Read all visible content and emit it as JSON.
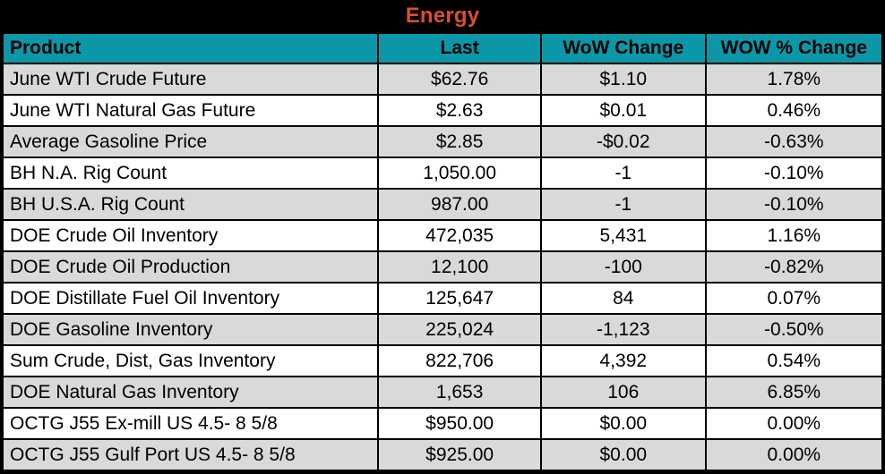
{
  "title": "Energy",
  "colors": {
    "title_text": "#D9502E",
    "title_bg": "#000000",
    "header_bg": "#0B97A7",
    "header_text": "#000000",
    "alt_row_bg": "#D9D9D9",
    "row_bg": "#FFFFFF",
    "grid": "#000000"
  },
  "table": {
    "columns": [
      {
        "key": "product",
        "label": "Product",
        "align": "left"
      },
      {
        "key": "last",
        "label": "Last",
        "align": "center"
      },
      {
        "key": "wow_change",
        "label": "WoW Change",
        "align": "center"
      },
      {
        "key": "wow_pct_change",
        "label": "WOW % Change",
        "align": "center"
      }
    ],
    "rows": [
      {
        "product": "June WTI Crude Future",
        "last": "$62.76",
        "wow_change": "$1.10",
        "wow_pct_change": "1.78%"
      },
      {
        "product": "June WTI Natural Gas Future",
        "last": "$2.63",
        "wow_change": "$0.01",
        "wow_pct_change": "0.46%"
      },
      {
        "product": "Average Gasoline Price",
        "last": "$2.85",
        "wow_change": "-$0.02",
        "wow_pct_change": "-0.63%"
      },
      {
        "product": "BH N.A. Rig Count",
        "last": "1,050.00",
        "wow_change": "-1",
        "wow_pct_change": "-0.10%"
      },
      {
        "product": "BH U.S.A. Rig Count",
        "last": "987.00",
        "wow_change": "-1",
        "wow_pct_change": "-0.10%"
      },
      {
        "product": "DOE Crude Oil Inventory",
        "last": "472,035",
        "wow_change": "5,431",
        "wow_pct_change": "1.16%"
      },
      {
        "product": "DOE Crude Oil Production",
        "last": "12,100",
        "wow_change": "-100",
        "wow_pct_change": "-0.82%"
      },
      {
        "product": "DOE Distillate Fuel Oil Inventory",
        "last": "125,647",
        "wow_change": "84",
        "wow_pct_change": "0.07%"
      },
      {
        "product": "DOE Gasoline Inventory",
        "last": "225,024",
        "wow_change": "-1,123",
        "wow_pct_change": "-0.50%"
      },
      {
        "product": "Sum Crude, Dist, Gas Inventory",
        "last": "822,706",
        "wow_change": "4,392",
        "wow_pct_change": "0.54%"
      },
      {
        "product": "DOE Natural Gas Inventory",
        "last": "1,653",
        "wow_change": "106",
        "wow_pct_change": "6.85%"
      },
      {
        "product": "OCTG J55 Ex-mill US 4.5- 8 5/8",
        "last": "$950.00",
        "wow_change": "$0.00",
        "wow_pct_change": "0.00%"
      },
      {
        "product": "OCTG J55 Gulf Port US 4.5- 8 5/8",
        "last": "$925.00",
        "wow_change": "$0.00",
        "wow_pct_change": "0.00%"
      }
    ]
  },
  "chart_data": {
    "type": "table",
    "title": "Energy",
    "columns": [
      "Product",
      "Last",
      "WoW Change",
      "WOW % Change"
    ],
    "rows": [
      [
        "June WTI Crude Future",
        "$62.76",
        "$1.10",
        "1.78%"
      ],
      [
        "June WTI Natural Gas Future",
        "$2.63",
        "$0.01",
        "0.46%"
      ],
      [
        "Average Gasoline Price",
        "$2.85",
        "-$0.02",
        "-0.63%"
      ],
      [
        "BH N.A. Rig Count",
        "1,050.00",
        "-1",
        "-0.10%"
      ],
      [
        "BH U.S.A. Rig Count",
        "987.00",
        "-1",
        "-0.10%"
      ],
      [
        "DOE Crude Oil Inventory",
        "472,035",
        "5,431",
        "1.16%"
      ],
      [
        "DOE Crude Oil Production",
        "12,100",
        "-100",
        "-0.82%"
      ],
      [
        "DOE Distillate Fuel Oil Inventory",
        "125,647",
        "84",
        "0.07%"
      ],
      [
        "DOE Gasoline Inventory",
        "225,024",
        "-1,123",
        "-0.50%"
      ],
      [
        "Sum Crude, Dist, Gas Inventory",
        "822,706",
        "4,392",
        "0.54%"
      ],
      [
        "DOE Natural Gas Inventory",
        "1,653",
        "106",
        "6.85%"
      ],
      [
        "OCTG J55 Ex-mill US 4.5- 8 5/8",
        "$950.00",
        "$0.00",
        "0.00%"
      ],
      [
        "OCTG J55 Gulf Port US 4.5- 8 5/8",
        "$925.00",
        "$0.00",
        "0.00%"
      ]
    ]
  }
}
